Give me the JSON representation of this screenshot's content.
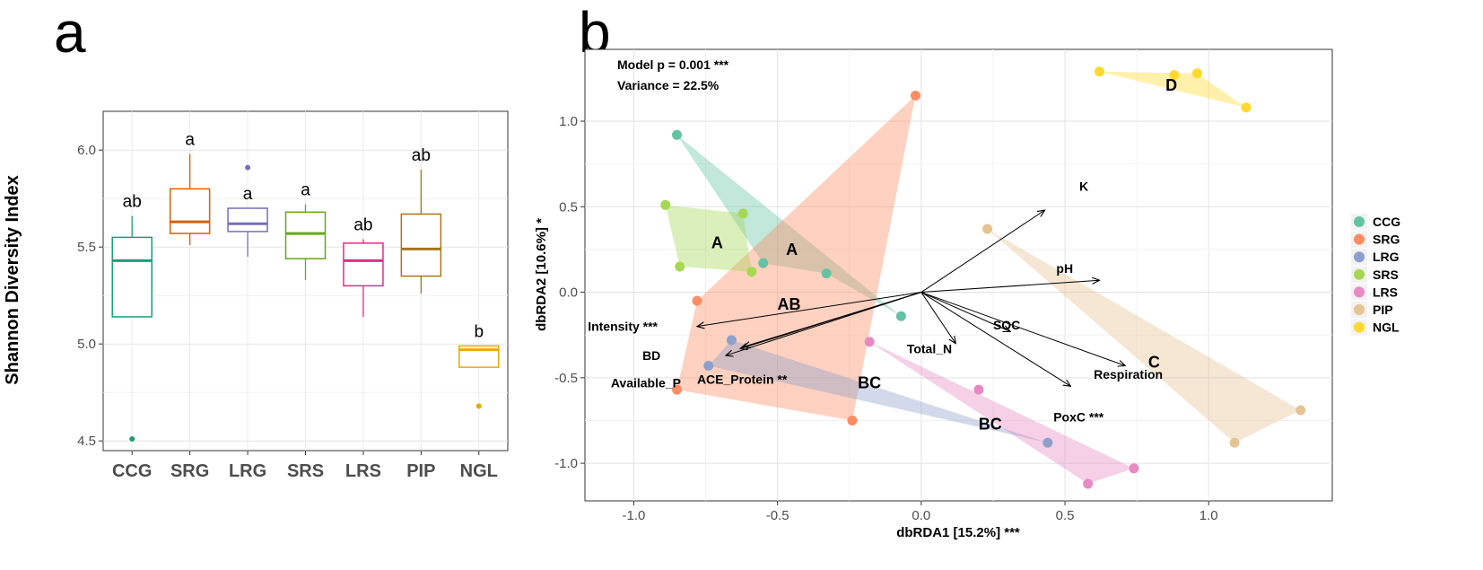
{
  "panels": {
    "a_label": "a",
    "b_label": "b"
  },
  "chart_data": [
    {
      "type": "box",
      "panel": "a",
      "title": "",
      "xlabel": "",
      "ylabel": "Shannon Diversity Index",
      "ylim": [
        4.45,
        6.2
      ],
      "yticks": [
        4.5,
        5.0,
        5.5,
        6.0
      ],
      "ytick_labels": [
        "4.5",
        "5.0",
        "5.5",
        "6.0"
      ],
      "grid": true,
      "boxes": [
        {
          "name": "CCG",
          "color": "#1b9e77",
          "min": 5.14,
          "q1": 5.14,
          "median": 5.43,
          "q3": 5.55,
          "max": 5.66,
          "outliers": [
            4.51
          ],
          "letter": "ab"
        },
        {
          "name": "SRG",
          "color": "#d95f02",
          "min": 5.51,
          "q1": 5.57,
          "median": 5.63,
          "q3": 5.8,
          "max": 5.98,
          "outliers": [],
          "letter": "a"
        },
        {
          "name": "LRG",
          "color": "#7570b3",
          "min": 5.45,
          "q1": 5.58,
          "median": 5.62,
          "q3": 5.7,
          "max": 5.7,
          "outliers": [
            5.91
          ],
          "letter": "a"
        },
        {
          "name": "SRS",
          "color": "#66a61e",
          "min": 5.33,
          "q1": 5.44,
          "median": 5.57,
          "q3": 5.68,
          "max": 5.72,
          "outliers": [],
          "letter": "a"
        },
        {
          "name": "LRS",
          "color": "#e7298a",
          "min": 5.14,
          "q1": 5.3,
          "median": 5.43,
          "q3": 5.52,
          "max": 5.54,
          "outliers": [],
          "letter": "ab"
        },
        {
          "name": "PIP",
          "color": "#a6761d",
          "min": 5.26,
          "q1": 5.35,
          "median": 5.49,
          "q3": 5.67,
          "max": 5.9,
          "outliers": [],
          "letter": "ab"
        },
        {
          "name": "NGL",
          "color": "#e6ab02",
          "min": 4.88,
          "q1": 4.88,
          "median": 4.97,
          "q3": 4.99,
          "max": 4.99,
          "outliers": [
            4.68
          ],
          "letter": "b"
        }
      ]
    },
    {
      "type": "scatter",
      "panel": "b",
      "title": "",
      "xlabel": "dbRDA1 [15.2%] ***",
      "ylabel": "dbRDA2 [10.6%] *",
      "xlim": [
        -1.17,
        1.43
      ],
      "ylim": [
        -1.22,
        1.42
      ],
      "xticks": [
        -1.0,
        -0.5,
        0.0,
        0.5,
        1.0
      ],
      "xtick_labels": [
        "-1.0",
        "-0.5",
        "0.0",
        "0.5",
        "1.0"
      ],
      "yticks": [
        -1.0,
        -0.5,
        0.0,
        0.5,
        1.0
      ],
      "ytick_labels": [
        "-1.0",
        "-0.5",
        "0.0",
        "0.5",
        "1.0"
      ],
      "grid": true,
      "legend_position": "right",
      "annotations": [
        "Model p = 0.001 ***",
        "Variance = 22.5%"
      ],
      "series": [
        {
          "name": "CCG",
          "color": "#66c2a5",
          "points": [
            [
              -0.85,
              0.92
            ],
            [
              -0.55,
              0.17
            ],
            [
              -0.33,
              0.11
            ],
            [
              -0.07,
              -0.14
            ]
          ],
          "hull": [
            [
              -0.85,
              0.92
            ],
            [
              -0.07,
              -0.14
            ],
            [
              -0.33,
              0.11
            ],
            [
              -0.55,
              0.17
            ]
          ]
        },
        {
          "name": "SRG",
          "color": "#fc8d62",
          "points": [
            [
              -0.02,
              1.15
            ],
            [
              -0.78,
              -0.05
            ],
            [
              -0.85,
              -0.57
            ],
            [
              -0.24,
              -0.75
            ]
          ],
          "hull": [
            [
              -0.02,
              1.15
            ],
            [
              -0.24,
              -0.75
            ],
            [
              -0.85,
              -0.57
            ],
            [
              -0.78,
              -0.05
            ]
          ]
        },
        {
          "name": "LRG",
          "color": "#8da0cb",
          "points": [
            [
              -0.66,
              -0.28
            ],
            [
              -0.74,
              -0.43
            ],
            [
              0.44,
              -0.88
            ]
          ],
          "hull": [
            [
              -0.66,
              -0.28
            ],
            [
              0.44,
              -0.88
            ],
            [
              -0.74,
              -0.43
            ]
          ]
        },
        {
          "name": "SRS",
          "color": "#a6d854",
          "points": [
            [
              -0.89,
              0.51
            ],
            [
              -0.62,
              0.46
            ],
            [
              -0.84,
              0.15
            ],
            [
              -0.59,
              0.12
            ]
          ],
          "hull": [
            [
              -0.89,
              0.51
            ],
            [
              -0.62,
              0.46
            ],
            [
              -0.59,
              0.12
            ],
            [
              -0.84,
              0.15
            ]
          ]
        },
        {
          "name": "LRS",
          "color": "#e78ac3",
          "points": [
            [
              -0.18,
              -0.29
            ],
            [
              0.2,
              -0.57
            ],
            [
              0.74,
              -1.03
            ],
            [
              0.58,
              -1.12
            ]
          ],
          "hull": [
            [
              -0.18,
              -0.29
            ],
            [
              0.74,
              -1.03
            ],
            [
              0.58,
              -1.12
            ]
          ]
        },
        {
          "name": "PIP",
          "color": "#e5c494",
          "points": [
            [
              0.23,
              0.37
            ],
            [
              1.32,
              -0.69
            ],
            [
              1.09,
              -0.88
            ]
          ],
          "hull": [
            [
              0.23,
              0.37
            ],
            [
              1.32,
              -0.69
            ],
            [
              1.09,
              -0.88
            ]
          ]
        },
        {
          "name": "NGL",
          "color": "#ffd92f",
          "points": [
            [
              0.62,
              1.29
            ],
            [
              0.88,
              1.27
            ],
            [
              0.96,
              1.28
            ],
            [
              1.13,
              1.08
            ]
          ],
          "hull": [
            [
              0.62,
              1.29
            ],
            [
              0.96,
              1.28
            ],
            [
              1.13,
              1.08
            ]
          ]
        }
      ],
      "group_labels": [
        {
          "text": "A",
          "x": -0.71,
          "y": 0.29
        },
        {
          "text": "A",
          "x": -0.45,
          "y": 0.25
        },
        {
          "text": "AB",
          "x": -0.46,
          "y": -0.07
        },
        {
          "text": "BC",
          "x": -0.18,
          "y": -0.53
        },
        {
          "text": "BC",
          "x": 0.24,
          "y": -0.77
        },
        {
          "text": "C",
          "x": 0.81,
          "y": -0.41
        },
        {
          "text": "D",
          "x": 0.87,
          "y": 1.21
        }
      ],
      "vectors": [
        {
          "name": "K",
          "x": 0.43,
          "y": 0.48,
          "label_x": 0.55,
          "label_y": 0.62
        },
        {
          "name": "pH",
          "x": 0.62,
          "y": 0.07,
          "label_x": 0.47,
          "label_y": 0.14
        },
        {
          "name": "Intensity ***",
          "x": -0.78,
          "y": -0.2,
          "label_x": -1.16,
          "label_y": -0.2
        },
        {
          "name": "BD",
          "x": -0.68,
          "y": -0.37,
          "label_x": -0.97,
          "label_y": -0.37
        },
        {
          "name": "Available_P",
          "x": -0.63,
          "y": -0.33,
          "label_x": -1.08,
          "label_y": -0.53
        },
        {
          "name": "ACE_Protein **",
          "x": -0.62,
          "y": -0.32,
          "label_x": -0.78,
          "label_y": -0.51
        },
        {
          "name": "Total_N",
          "x": 0.12,
          "y": -0.3,
          "label_x": -0.05,
          "label_y": -0.33
        },
        {
          "name": "SOC",
          "x": 0.31,
          "y": -0.23,
          "label_x": 0.25,
          "label_y": -0.19
        },
        {
          "name": "Respiration",
          "x": 0.71,
          "y": -0.43,
          "label_x": 0.6,
          "label_y": -0.48
        },
        {
          "name": "PoxC ***",
          "x": 0.52,
          "y": -0.55,
          "label_x": 0.46,
          "label_y": -0.73
        }
      ],
      "legend": [
        {
          "name": "CCG",
          "color": "#66c2a5"
        },
        {
          "name": "SRG",
          "color": "#fc8d62"
        },
        {
          "name": "LRG",
          "color": "#8da0cb"
        },
        {
          "name": "SRS",
          "color": "#a6d854"
        },
        {
          "name": "LRS",
          "color": "#e78ac3"
        },
        {
          "name": "PIP",
          "color": "#e5c494"
        },
        {
          "name": "NGL",
          "color": "#ffd92f"
        }
      ]
    }
  ]
}
